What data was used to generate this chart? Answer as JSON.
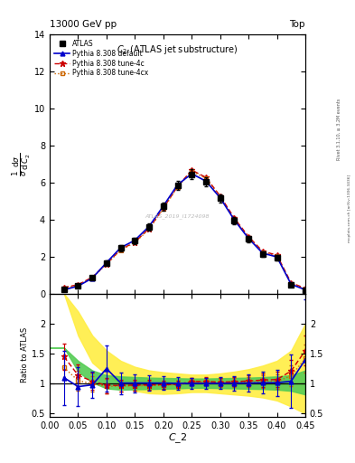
{
  "header_left": "13000 GeV pp",
  "header_right": "Top",
  "title_in": "C_{2} (ATLAS jet substructure)",
  "watermark": "ATLAS_2019_I1724098",
  "rivet_label": "Rivet 3.1.10, ≥ 3.2M events",
  "mcplots_label": "mcplots.cern.ch [arXiv:1306.3436]",
  "xlabel": "C_2",
  "ylabel_main": "1/σ dσ/d C_2",
  "ylabel_ratio": "Ratio to ATLAS",
  "x": [
    0.025,
    0.05,
    0.075,
    0.1,
    0.125,
    0.15,
    0.175,
    0.2,
    0.225,
    0.25,
    0.275,
    0.3,
    0.325,
    0.35,
    0.375,
    0.4,
    0.425,
    0.45
  ],
  "atlas_y": [
    0.22,
    0.42,
    0.85,
    1.65,
    2.45,
    2.85,
    3.6,
    4.7,
    5.85,
    6.45,
    6.05,
    5.15,
    3.95,
    2.95,
    2.15,
    1.95,
    0.48,
    0.18
  ],
  "atlas_yerr": [
    0.05,
    0.07,
    0.09,
    0.12,
    0.15,
    0.17,
    0.2,
    0.22,
    0.25,
    0.27,
    0.25,
    0.22,
    0.2,
    0.17,
    0.15,
    0.15,
    0.08,
    0.05
  ],
  "default_y": [
    0.2,
    0.4,
    0.83,
    1.67,
    2.48,
    2.88,
    3.63,
    4.73,
    5.88,
    6.48,
    6.08,
    5.18,
    3.98,
    2.98,
    2.18,
    1.98,
    0.5,
    0.2
  ],
  "tune4c_y": [
    0.32,
    0.48,
    0.88,
    1.6,
    2.38,
    2.78,
    3.52,
    4.62,
    5.78,
    6.68,
    6.28,
    5.28,
    4.08,
    3.08,
    2.28,
    2.08,
    0.58,
    0.28
  ],
  "tune4cx_y": [
    0.28,
    0.44,
    0.85,
    1.58,
    2.35,
    2.75,
    3.48,
    4.58,
    5.75,
    6.62,
    6.22,
    5.22,
    4.02,
    3.02,
    2.22,
    2.02,
    0.54,
    0.24
  ],
  "default_ratio": [
    1.1,
    0.95,
    0.98,
    1.25,
    1.01,
    1.01,
    1.01,
    1.01,
    1.005,
    1.005,
    1.005,
    1.006,
    1.008,
    1.01,
    1.014,
    1.015,
    1.04,
    1.4
  ],
  "tune4c_ratio": [
    1.45,
    1.14,
    1.04,
    0.97,
    0.97,
    0.975,
    0.978,
    0.983,
    0.988,
    1.035,
    1.038,
    1.025,
    1.032,
    1.045,
    1.06,
    1.068,
    1.21,
    1.55
  ],
  "tune4cx_ratio": [
    1.27,
    1.05,
    1.0,
    0.955,
    0.959,
    0.965,
    0.967,
    0.974,
    0.983,
    1.027,
    1.028,
    1.014,
    1.018,
    1.025,
    1.034,
    1.036,
    1.13,
    1.42
  ],
  "default_ratio_yerr": [
    0.45,
    0.32,
    0.22,
    0.38,
    0.18,
    0.15,
    0.13,
    0.11,
    0.1,
    0.09,
    0.09,
    0.1,
    0.12,
    0.14,
    0.18,
    0.22,
    0.45,
    1.0
  ],
  "tune4c_ratio_yerr": [
    0.22,
    0.18,
    0.14,
    0.13,
    0.1,
    0.09,
    0.08,
    0.07,
    0.065,
    0.065,
    0.065,
    0.07,
    0.08,
    0.09,
    0.11,
    0.13,
    0.18,
    0.25
  ],
  "tune4cx_ratio_yerr": [
    0.2,
    0.16,
    0.13,
    0.12,
    0.09,
    0.085,
    0.075,
    0.065,
    0.06,
    0.06,
    0.06,
    0.065,
    0.075,
    0.085,
    0.1,
    0.12,
    0.17,
    0.23
  ],
  "yellow_band_x": [
    0.0,
    0.025,
    0.05,
    0.075,
    0.1,
    0.125,
    0.15,
    0.175,
    0.2,
    0.225,
    0.25,
    0.275,
    0.3,
    0.325,
    0.35,
    0.375,
    0.4,
    0.425,
    0.45
  ],
  "yellow_band_lo": [
    2.5,
    2.5,
    1.8,
    1.35,
    1.15,
    1.0,
    0.88,
    0.84,
    0.83,
    0.84,
    0.86,
    0.86,
    0.84,
    0.82,
    0.8,
    0.77,
    0.72,
    0.62,
    0.5
  ],
  "yellow_band_hi": [
    2.5,
    2.5,
    2.2,
    1.8,
    1.55,
    1.38,
    1.28,
    1.22,
    1.19,
    1.17,
    1.15,
    1.15,
    1.17,
    1.2,
    1.24,
    1.3,
    1.38,
    1.55,
    2.0
  ],
  "green_band_x": [
    0.0,
    0.025,
    0.05,
    0.075,
    0.1,
    0.125,
    0.15,
    0.175,
    0.2,
    0.225,
    0.25,
    0.275,
    0.3,
    0.325,
    0.35,
    0.375,
    0.4,
    0.425,
    0.45
  ],
  "green_band_lo": [
    1.6,
    1.6,
    1.2,
    1.02,
    0.92,
    0.9,
    0.905,
    0.91,
    0.915,
    0.92,
    0.93,
    0.93,
    0.925,
    0.92,
    0.915,
    0.91,
    0.9,
    0.88,
    0.82
  ],
  "green_band_hi": [
    1.6,
    1.6,
    1.38,
    1.22,
    1.14,
    1.12,
    1.11,
    1.1,
    1.095,
    1.09,
    1.085,
    1.085,
    1.09,
    1.095,
    1.1,
    1.108,
    1.12,
    1.14,
    1.22
  ],
  "color_atlas": "#000000",
  "color_default": "#0000cc",
  "color_tune4c": "#cc0000",
  "color_tune4cx": "#cc6600",
  "ylim_main": [
    0,
    14
  ],
  "ylim_ratio": [
    0.45,
    2.5
  ],
  "xlim": [
    0.0,
    0.45
  ],
  "yticks_ratio": [
    0.5,
    1.0,
    1.5,
    2.0
  ],
  "ytick_ratio_labels": [
    "0.5",
    "1",
    "1.5",
    "2"
  ]
}
